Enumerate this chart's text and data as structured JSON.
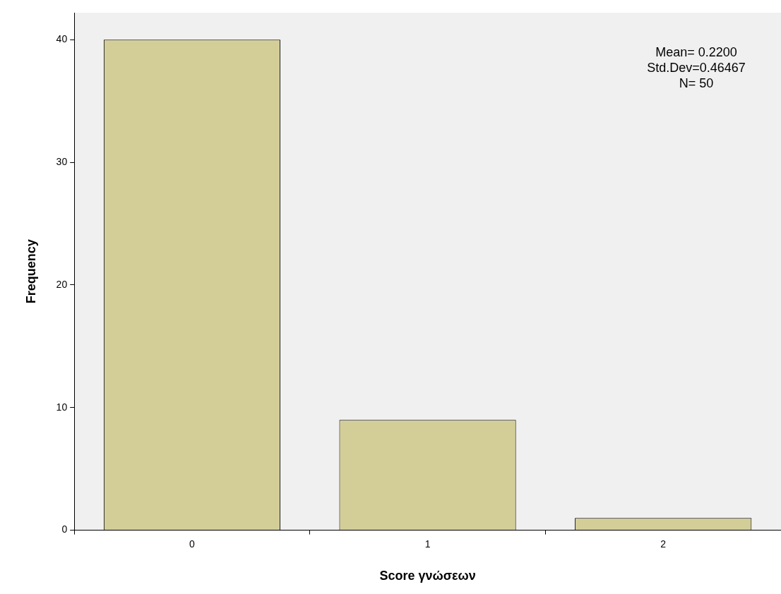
{
  "chart_data": {
    "type": "bar",
    "xlabel": "Score γνώσεων",
    "ylabel": "Frequency",
    "categories": [
      "0",
      "1",
      "2"
    ],
    "values": [
      40,
      9,
      1
    ],
    "color": "#d3ce97",
    "ylim": [
      0,
      42.2
    ],
    "yticks": [
      0,
      10,
      20,
      30,
      40
    ],
    "grid": false,
    "legend": false,
    "annotations": [
      "Mean= 0.2200",
      "Std.Dev=0.46467",
      "N= 50"
    ]
  }
}
